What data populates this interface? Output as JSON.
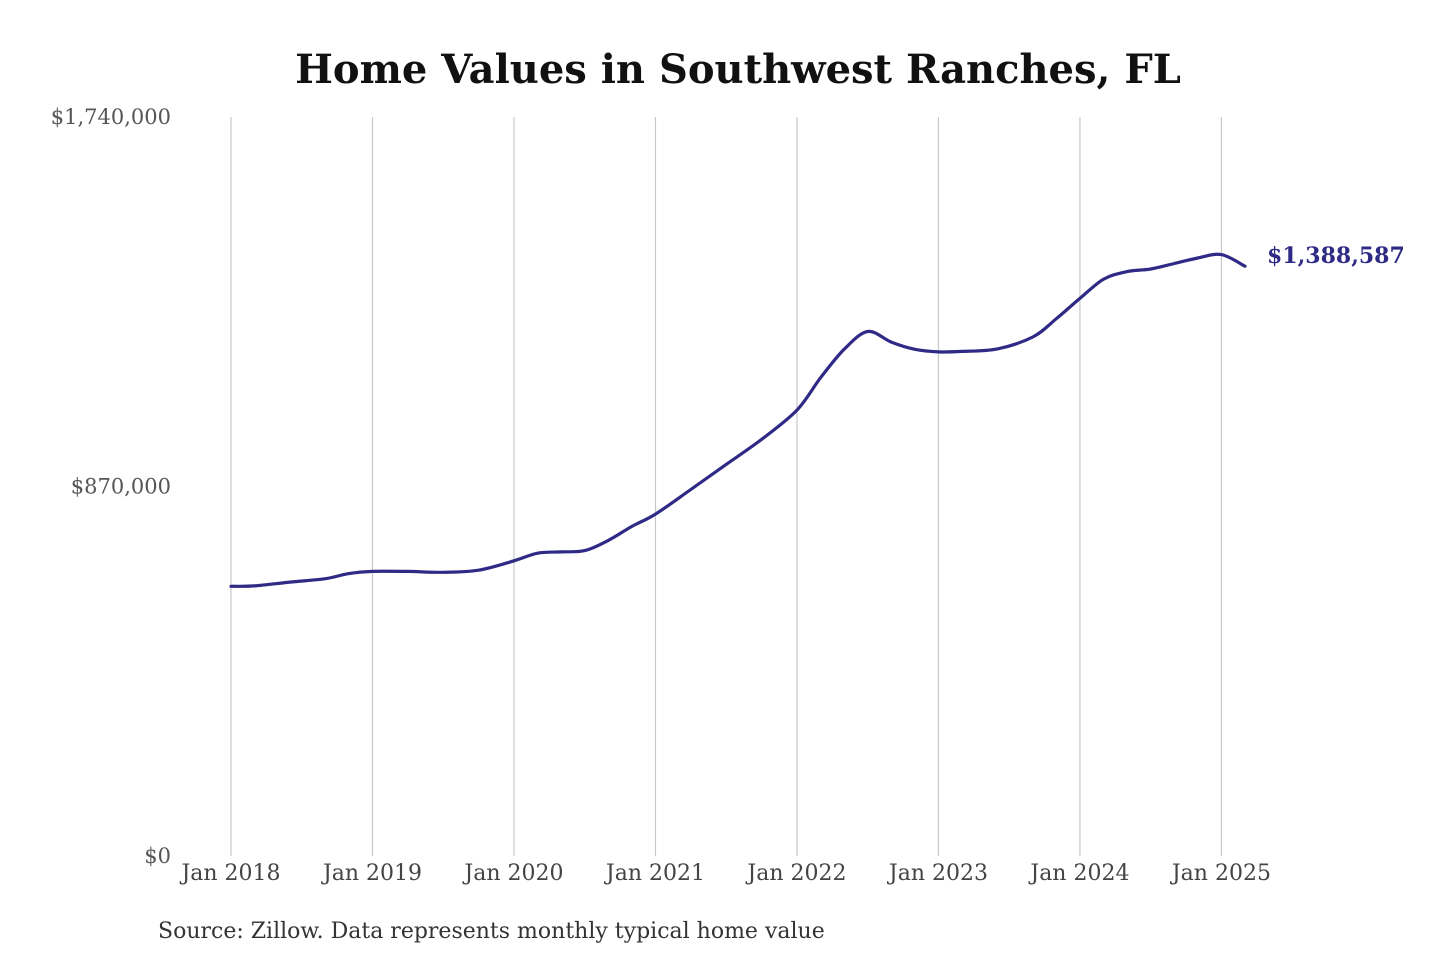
{
  "chart_data": {
    "type": "line",
    "title": "Home Values in Southwest Ranches, FL",
    "xlabel": "",
    "ylabel": "",
    "ylim": [
      0,
      1740000
    ],
    "xlim": [
      "2018-01",
      "2025-03"
    ],
    "y_tick_labels": [
      "$0",
      "$870,000",
      "$1,740,000"
    ],
    "y_tick_values": [
      0,
      870000,
      1740000
    ],
    "x_tick_labels": [
      "Jan 2018",
      "Jan 2019",
      "Jan 2020",
      "Jan 2021",
      "Jan 2022",
      "Jan 2023",
      "Jan 2024",
      "Jan 2025"
    ],
    "x_tick_values": [
      "2018-01",
      "2019-01",
      "2020-01",
      "2021-01",
      "2022-01",
      "2023-01",
      "2024-01",
      "2025-01"
    ],
    "grid": "vertical",
    "line_color": "#2e2a85",
    "end_label": "$1,388,587",
    "series": [
      {
        "x": [
          "2018-01",
          "2018-03",
          "2018-06",
          "2018-09",
          "2018-11",
          "2019-01",
          "2019-04",
          "2019-07",
          "2019-10",
          "2020-01",
          "2020-03",
          "2020-05",
          "2020-07",
          "2020-09",
          "2020-11",
          "2021-01",
          "2021-04",
          "2021-07",
          "2021-10",
          "2022-01",
          "2022-03",
          "2022-05",
          "2022-07",
          "2022-09",
          "2022-11",
          "2023-01",
          "2023-03",
          "2023-06",
          "2023-09",
          "2023-11",
          "2024-01",
          "2024-03",
          "2024-05",
          "2024-07",
          "2024-09",
          "2024-11",
          "2025-01",
          "2025-03"
        ],
        "values": [
          635000,
          636000,
          645000,
          653000,
          665000,
          670000,
          670000,
          668000,
          673000,
          695000,
          713000,
          716000,
          719000,
          743000,
          776000,
          805000,
          863000,
          922000,
          981000,
          1050000,
          1126000,
          1193000,
          1235000,
          1210000,
          1193000,
          1187000,
          1188000,
          1194000,
          1222000,
          1265000,
          1313000,
          1358000,
          1376000,
          1382000,
          1395000,
          1408000,
          1416000,
          1388587
        ]
      }
    ]
  },
  "source": "Source: Zillow. Data represents monthly typical home value"
}
